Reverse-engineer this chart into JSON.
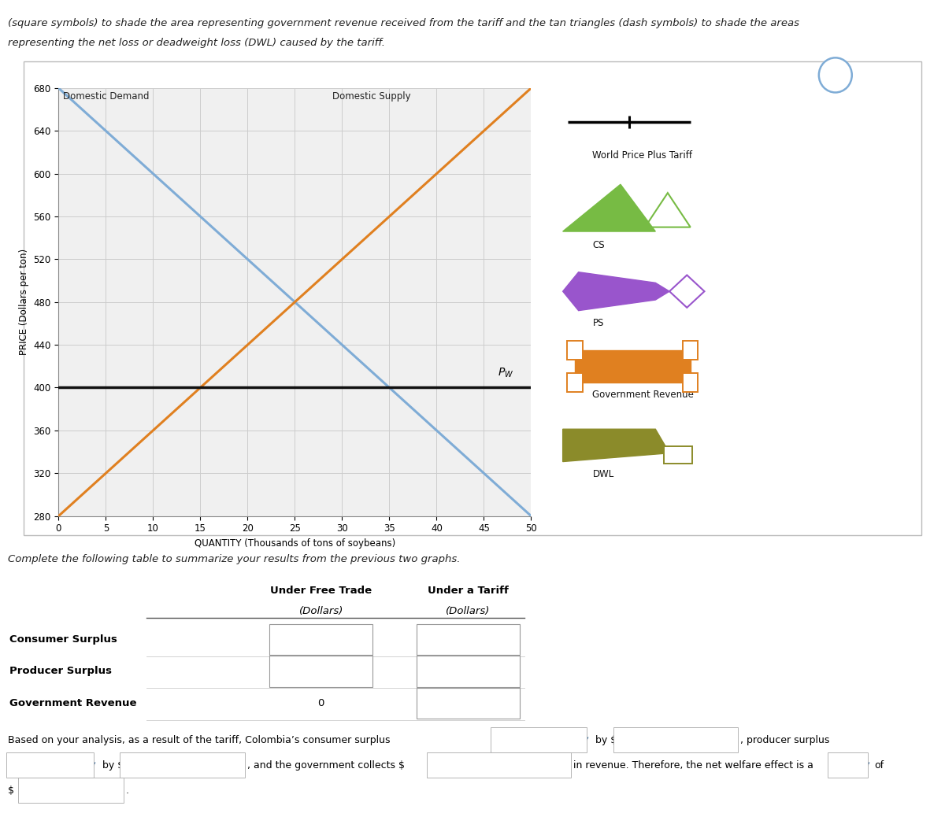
{
  "title_line1": "(square symbols) to shade the area representing government revenue received from the tariff and the tan triangles (dash symbols) to shade the areas",
  "title_line2": "representing the net loss or deadweight loss (DWL) caused by the tariff.",
  "chart_bg": "#f0f0f0",
  "outer_bg": "#ffffff",
  "box_bg": "#ffffff",
  "demand_label": "Domestic Demand",
  "supply_label": "Domestic Supply",
  "pw_value": 400,
  "x_min": 0,
  "x_max": 50,
  "y_min": 280,
  "y_max": 680,
  "x_ticks": [
    0,
    5,
    10,
    15,
    20,
    25,
    30,
    35,
    40,
    45,
    50
  ],
  "y_ticks": [
    280,
    320,
    360,
    400,
    440,
    480,
    520,
    560,
    600,
    640,
    680
  ],
  "xlabel": "QUANTITY (Thousands of tons of soybeans)",
  "ylabel": "PRICE (Dollars per ton)",
  "demand_color": "#7facd6",
  "supply_color": "#e08020",
  "pw_color": "#111111",
  "legend_world_price_label": "World Price Plus Tariff",
  "legend_cs_label": "CS",
  "legend_ps_label": "PS",
  "legend_gov_label": "Government Revenue",
  "legend_dwl_label": "DWL",
  "cs_color": "#77bb44",
  "ps_color": "#9955cc",
  "gov_color": "#e08020",
  "dwl_color": "#8b8b2a",
  "table_instruction": "Complete the following table to summarize your results from the previous two graphs.",
  "table_col1": "Under Free Trade",
  "table_col1_sub": "(Dollars)",
  "table_col2": "Under a Tariff",
  "table_col2_sub": "(Dollars)",
  "table_rows": [
    "Consumer Surplus",
    "Producer Surplus",
    "Government Revenue"
  ],
  "table_gov_free": "0",
  "qmark_color": "#7facd6",
  "grid_color": "#cccccc",
  "box_border": "#cccccc"
}
